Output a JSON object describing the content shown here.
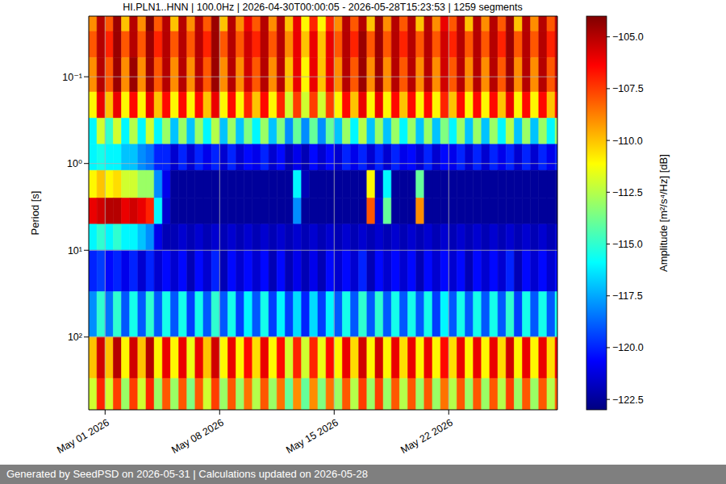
{
  "chart_data": {
    "type": "heatmap",
    "title": "HI.PLN1..HNN | 100.0Hz | 2026-04-30T00:00:05 - 2026-05-28T15:23:53 | 1259 segments",
    "y_label": "Period [s]",
    "footer": "Generated by SeedPSD on 2026-05-31 | Calculations updated on 2026-05-28",
    "log": "y",
    "grid": true,
    "color": "jet",
    "xlim": [
      "2026-04-30T00:00:05",
      "2026-05-28T15:23:53"
    ],
    "xticks": [
      {
        "value": "2026-05-01",
        "label": "May 01 2026"
      },
      {
        "value": "2026-05-08",
        "label": "May 08 2026"
      },
      {
        "value": "2026-05-15",
        "label": "May 15 2026"
      },
      {
        "value": "2026-05-22",
        "label": "May 22 2026"
      }
    ],
    "ylim": [
      0.02,
      690
    ],
    "yticks": [
      {
        "value": 0.1,
        "label": "10⁻¹"
      },
      {
        "value": 1,
        "label": "10⁰"
      },
      {
        "value": 10,
        "label": "10¹"
      },
      {
        "value": 100,
        "label": "10²"
      }
    ],
    "x_bins": [
      "2026-04-30T00:00:05",
      "2026-04-30T12:00",
      "2026-05-01T00:00",
      "2026-05-01T12:00",
      "2026-05-02T00:00",
      "2026-05-02T12:00",
      "2026-05-03T00:00",
      "2026-05-03T12:00",
      "2026-05-04T00:00",
      "2026-05-04T12:00",
      "2026-05-05T00:00",
      "2026-05-05T12:00",
      "2026-05-06T00:00",
      "2026-05-06T12:00",
      "2026-05-07T00:00",
      "2026-05-07T12:00",
      "2026-05-08T00:00",
      "2026-05-08T12:00",
      "2026-05-09T00:00",
      "2026-05-09T12:00",
      "2026-05-10T00:00",
      "2026-05-10T12:00",
      "2026-05-11T00:00",
      "2026-05-11T12:00",
      "2026-05-12T00:00",
      "2026-05-12T12:00",
      "2026-05-13T00:00",
      "2026-05-13T12:00",
      "2026-05-14T00:00",
      "2026-05-14T12:00",
      "2026-05-15T00:00",
      "2026-05-15T12:00",
      "2026-05-16T00:00",
      "2026-05-16T12:00",
      "2026-05-17T00:00",
      "2026-05-17T12:00",
      "2026-05-18T00:00",
      "2026-05-18T12:00",
      "2026-05-19T00:00",
      "2026-05-19T12:00",
      "2026-05-20T00:00",
      "2026-05-20T12:00",
      "2026-05-21T00:00",
      "2026-05-21T12:00",
      "2026-05-22T00:00",
      "2026-05-22T12:00",
      "2026-05-23T00:00",
      "2026-05-23T12:00",
      "2026-05-24T00:00",
      "2026-05-24T12:00",
      "2026-05-25T00:00",
      "2026-05-25T12:00",
      "2026-05-26T00:00",
      "2026-05-26T12:00",
      "2026-05-27T00:00",
      "2026-05-27T12:00",
      "2026-05-28T00:00",
      "2026-05-28T12:00",
      "2026-05-28T15:23:53"
    ],
    "y_bins": [
      0.02,
      0.03,
      0.06,
      0.15,
      0.3,
      0.6,
      1.2,
      2.5,
      5,
      10,
      30,
      100,
      300,
      690
    ],
    "cells": [
      [
        -109,
        -105,
        -108,
        -104.5,
        -110,
        -105,
        -109,
        -104,
        -108,
        -105,
        -110,
        -105,
        -109,
        -105,
        -108,
        -104.5,
        -110,
        -105,
        -109,
        -106,
        -108,
        -105,
        -109,
        -105,
        -110,
        -106,
        -111,
        -107,
        -111,
        -107,
        -109,
        -105,
        -108,
        -105,
        -110,
        -104.5,
        -109,
        -105,
        -108,
        -105,
        -110,
        -105,
        -109,
        -106,
        -108,
        -105,
        -110,
        -105,
        -109,
        -105,
        -108,
        -104.5,
        -110,
        -105,
        -109,
        -105,
        -108,
        -105
      ],
      [
        -108,
        -105,
        -107,
        -104.5,
        -108,
        -105,
        -108,
        -104.5,
        -107,
        -105,
        -108,
        -105,
        -108,
        -105,
        -107,
        -104.5,
        -108,
        -105,
        -108,
        -105.5,
        -107,
        -105,
        -108,
        -105,
        -109,
        -106,
        -110,
        -106,
        -110,
        -106,
        -108,
        -105,
        -107,
        -104.5,
        -108,
        -104.5,
        -108,
        -105,
        -107,
        -105,
        -108,
        -105,
        -108,
        -105.5,
        -107,
        -105,
        -108,
        -105,
        -108,
        -105,
        -107,
        -104.5,
        -108,
        -105,
        -108,
        -105,
        -107,
        -105
      ],
      [
        -109,
        -105,
        -108,
        -104.5,
        -109,
        -104.5,
        -109,
        -104.5,
        -108,
        -105,
        -109,
        -105,
        -109,
        -105,
        -108,
        -104.5,
        -109,
        -105,
        -109,
        -105.5,
        -108,
        -105,
        -109,
        -105,
        -110,
        -106,
        -111,
        -106,
        -110,
        -106,
        -109,
        -105,
        -108,
        -104.5,
        -109,
        -104.5,
        -109,
        -105,
        -108,
        -105,
        -109,
        -105,
        -109,
        -105.5,
        -108,
        -105,
        -109,
        -105,
        -109,
        -105,
        -108,
        -104.5,
        -109,
        -105,
        -109,
        -105,
        -108,
        -105
      ],
      [
        -111,
        -106,
        -110,
        -106,
        -111,
        -106.5,
        -111,
        -106,
        -110,
        -106.5,
        -111,
        -106.5,
        -111,
        -106.5,
        -110,
        -106,
        -111,
        -106.5,
        -111,
        -107,
        -110,
        -106.5,
        -111,
        -107,
        -112,
        -107.5,
        -112,
        -107.5,
        -112,
        -107.5,
        -111,
        -106.5,
        -110,
        -106,
        -111,
        -106,
        -111,
        -106.5,
        -110,
        -106.5,
        -111,
        -106.5,
        -111,
        -107,
        -110,
        -106.5,
        -111,
        -106.5,
        -111,
        -106.5,
        -110,
        -106,
        -111,
        -106.5,
        -111,
        -106.5,
        -110,
        -106.5
      ],
      [
        -116,
        -112,
        -115,
        -112,
        -116,
        -112.5,
        -116,
        -112,
        -116,
        -113,
        -117,
        -113,
        -117,
        -113,
        -116,
        -112.5,
        -117,
        -113,
        -117,
        -113.5,
        -116,
        -113,
        -117,
        -113.5,
        -118,
        -114,
        -118,
        -114,
        -118,
        -114,
        -117,
        -113,
        -116,
        -112.5,
        -117,
        -113,
        -117,
        -113,
        -116,
        -113,
        -117,
        -113,
        -117,
        -113.5,
        -116,
        -113,
        -117,
        -113,
        -117,
        -113,
        -116,
        -112.5,
        -117,
        -113,
        -117,
        -113,
        -116,
        -113
      ],
      [
        -116,
        -115.5,
        -116,
        -116,
        -117,
        -117,
        -118,
        -118.5,
        -120,
        -120,
        -121.5,
        -120,
        -121.5,
        -120,
        -121,
        -120,
        -121.5,
        -120,
        -121.5,
        -120.5,
        -121,
        -120,
        -121.5,
        -120.5,
        -122,
        -121,
        -122,
        -120.5,
        -121.5,
        -120.5,
        -121.5,
        -120,
        -121,
        -120,
        -121.5,
        -120,
        -121.5,
        -120,
        -121,
        -120.5,
        -121.5,
        -120,
        -121.5,
        -120.5,
        -121,
        -120,
        -121.5,
        -120,
        -121.5,
        -120,
        -121,
        -120,
        -121.5,
        -120,
        -121.5,
        -120,
        -121,
        -120
      ],
      [
        -111,
        -110,
        -111,
        -110.5,
        -112,
        -112,
        -113,
        -113,
        -118,
        -121,
        -122.5,
        -122.5,
        -122.5,
        -122.5,
        -122.5,
        -122.5,
        -122.5,
        -122.5,
        -122.5,
        -122.5,
        -122.5,
        -122.5,
        -122.5,
        -122.5,
        -122.5,
        -116,
        -122,
        -122.5,
        -122.5,
        -122.5,
        -122.5,
        -122.5,
        -122.5,
        -122.5,
        -111,
        -122,
        -116,
        -122.5,
        -122.5,
        -122.5,
        -114,
        -122.5,
        -122.5,
        -122.5,
        -122.5,
        -122.5,
        -122.5,
        -122.5,
        -122.5,
        -122.5,
        -122.5,
        -122.5,
        -122.5,
        -122.5,
        -122.5,
        -122.5,
        -122.5,
        -122.5
      ],
      [
        -106,
        -105.5,
        -105,
        -105,
        -106,
        -105.5,
        -106,
        -107,
        -116,
        -121.5,
        -122.5,
        -122.5,
        -122.5,
        -122.5,
        -122.5,
        -122.5,
        -122.5,
        -122.5,
        -122.5,
        -122.5,
        -122.5,
        -122.5,
        -122.5,
        -122.5,
        -122.5,
        -118,
        -122.5,
        -122.5,
        -122.5,
        -122.5,
        -122.5,
        -122.5,
        -122.5,
        -122.5,
        -108,
        -121.5,
        -114,
        -122.5,
        -122.5,
        -122.5,
        -109,
        -122.5,
        -122.5,
        -122.5,
        -122.5,
        -122.5,
        -122.5,
        -122.5,
        -122.5,
        -122.5,
        -122.5,
        -122.5,
        -122.5,
        -122.5,
        -122.5,
        -122.5,
        -122.5,
        -122.5
      ],
      [
        -116,
        -115,
        -116,
        -115,
        -116,
        -116,
        -117,
        -118,
        -121,
        -122,
        -122,
        -121.5,
        -122,
        -121.5,
        -122,
        -121.5,
        -122,
        -121.5,
        -122,
        -121.5,
        -122,
        -121.5,
        -122,
        -121.5,
        -122,
        -121.5,
        -122,
        -121.5,
        -122,
        -121.5,
        -122,
        -121.5,
        -122,
        -121.5,
        -122,
        -121.5,
        -122,
        -121.5,
        -122,
        -121.5,
        -122,
        -121.5,
        -122,
        -121.5,
        -122,
        -121.5,
        -122,
        -121.5,
        -122,
        -121.5,
        -122,
        -121.5,
        -122,
        -121.5,
        -122,
        -121.5,
        -122,
        -121.5
      ],
      [
        -120,
        -119.5,
        -120.5,
        -120,
        -121,
        -120,
        -121.5,
        -120,
        -121.5,
        -120.5,
        -121.5,
        -120.5,
        -122,
        -120.5,
        -121.5,
        -120,
        -122,
        -120.5,
        -121.5,
        -120.5,
        -121.5,
        -120.5,
        -122,
        -120.5,
        -122,
        -121,
        -122,
        -121,
        -122,
        -120.5,
        -121.5,
        -120.5,
        -121.5,
        -120,
        -122,
        -120.5,
        -121.5,
        -120.5,
        -121.5,
        -120.5,
        -122,
        -120.5,
        -121.5,
        -120.5,
        -121.5,
        -120.5,
        -122,
        -120.5,
        -121.5,
        -120.5,
        -121.5,
        -120,
        -122,
        -120.5,
        -121.5,
        -120.5,
        -121.5,
        -120.5
      ],
      [
        -118,
        -115,
        -118.5,
        -115,
        -119,
        -115.5,
        -119,
        -115,
        -119,
        -115.5,
        -119,
        -115.5,
        -119.5,
        -115.5,
        -119,
        -115,
        -119,
        -115.5,
        -119.5,
        -116,
        -119,
        -115.5,
        -119.5,
        -116,
        -119.5,
        -116.5,
        -120,
        -116.5,
        -119.5,
        -116,
        -119,
        -115.5,
        -119,
        -115,
        -119,
        -115,
        -119,
        -115.5,
        -119,
        -115.5,
        -119,
        -115.5,
        -119.5,
        -116,
        -119,
        -115.5,
        -119,
        -115.5,
        -119,
        -115.5,
        -119,
        -115,
        -119.5,
        -115.5,
        -119,
        -115.5,
        -119,
        -115.5
      ],
      [
        -110,
        -105.5,
        -110,
        -105,
        -111,
        -105.5,
        -110,
        -105,
        -111,
        -106,
        -111,
        -106,
        -111.5,
        -106,
        -110,
        -105.5,
        -111,
        -106,
        -111,
        -106.5,
        -110.5,
        -106,
        -111,
        -106.5,
        -112,
        -107,
        -112,
        -107,
        -111.5,
        -106.5,
        -111,
        -106,
        -110.5,
        -105.5,
        -111,
        -105.5,
        -111,
        -106,
        -110.5,
        -106,
        -111,
        -106,
        -111,
        -106.5,
        -110.5,
        -106,
        -111,
        -106,
        -111,
        -106,
        -110.5,
        -105.5,
        -111,
        -106,
        -111,
        -106,
        -110.5,
        -106
      ],
      [
        -112,
        -107,
        -112,
        -107.5,
        -113,
        -107.5,
        -112,
        -107,
        -113,
        -108,
        -113,
        -108,
        -113.5,
        -108,
        -112,
        -107.5,
        -113,
        -108,
        -113,
        -108.5,
        -112.5,
        -108,
        -113,
        -108.5,
        -114,
        -109,
        -114,
        -109,
        -113.5,
        -108.5,
        -113,
        -108,
        -112.5,
        -107.5,
        -113,
        -107.5,
        -113,
        -108,
        -112.5,
        -108,
        -113,
        -108,
        -113,
        -108.5,
        -112.5,
        -108,
        -113,
        -108,
        -113,
        -108,
        -112.5,
        -107.5,
        -113,
        -108,
        -113,
        -108,
        -112.5,
        -108
      ]
    ],
    "colorbar": {
      "label": "Amplitude [m²/s⁴/Hz] [dB]",
      "range": [
        -123,
        -104
      ],
      "ticks": [
        {
          "value": -105,
          "label": "−105.0"
        },
        {
          "value": -107.5,
          "label": "−107.5"
        },
        {
          "value": -110,
          "label": "−110.0"
        },
        {
          "value": -112.5,
          "label": "−112.5"
        },
        {
          "value": -115,
          "label": "−115.0"
        },
        {
          "value": -117.5,
          "label": "−117.5"
        },
        {
          "value": -120,
          "label": "−120.0"
        },
        {
          "value": -122.5,
          "label": "−122.5"
        }
      ]
    }
  }
}
